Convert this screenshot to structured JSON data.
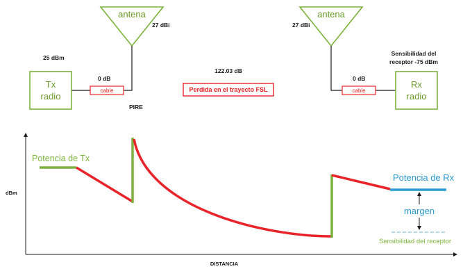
{
  "transmitter": {
    "antenna_label": "antena",
    "antenna_gain": "27 dBi",
    "power": "25 dBm",
    "radio_line1": "Tx",
    "radio_line2": "radio",
    "cable_loss": "0 dB",
    "cable_label": "cable",
    "eirp_label": "PIRE"
  },
  "path": {
    "loss_value": "122.03 dB",
    "loss_label": "Perdida en el trayecto FSL"
  },
  "receiver": {
    "antenna_label": "antena",
    "antenna_gain": "27 dBi",
    "sensitivity_line1": "Sensibilidad del",
    "sensitivity_line2": "receptor -75 dBm",
    "radio_line1": "Rx",
    "radio_line2": "radio",
    "cable_loss": "0 dB",
    "cable_label": "cable"
  },
  "graph": {
    "y_axis_label": "dBm",
    "x_axis_label": "DISTANCIA",
    "tx_power_label": "Potencia de Tx",
    "rx_power_label": "Potencia de Rx",
    "margin_label": "margen",
    "sensitivity_label": "Sensibilidad del receptor"
  },
  "colors": {
    "green": "#7cb33c",
    "red": "#e8232a",
    "blue": "#2b9bd2",
    "light_blue": "#9ccbe6",
    "dark": "#1a1a1a"
  }
}
